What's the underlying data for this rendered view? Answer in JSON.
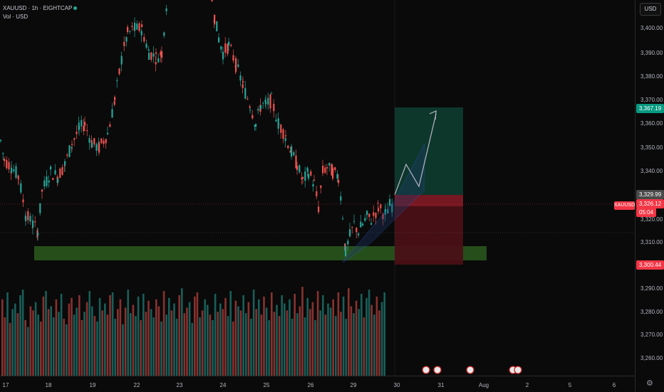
{
  "header": {
    "symbol_line": "XAUUSD · 1h · EIGHTCAP",
    "vol_line": "Vol · USD",
    "currency": "USD",
    "symbol_tag": "XAUUSD"
  },
  "price_scale": {
    "labels": [
      "3,400.00",
      "3,390.00",
      "3,380.00",
      "3,370.00",
      "3,360.00",
      "3,350.00",
      "3,340.00",
      "3,320.00",
      "3,310.00",
      "3,290.00",
      "3,280.00",
      "3,270.00",
      "3,260.00"
    ],
    "tags": {
      "target": {
        "text": "3,367.19",
        "color": "#089981"
      },
      "entry": {
        "text": "3,329.99",
        "color": "#4a4a4a"
      },
      "last_price": {
        "text": "3,326.12",
        "color": "#f23645"
      },
      "countdown": {
        "text": "05:04",
        "color": "#f23645"
      },
      "stop": {
        "text": "3,300.44",
        "color": "#f23645"
      }
    }
  },
  "time_scale": {
    "labels": [
      "17",
      "18",
      "19",
      "22",
      "23",
      "24",
      "25",
      "26",
      "29",
      "30",
      "31",
      "Aug",
      "2",
      "5",
      "6"
    ]
  },
  "colors": {
    "up": "#26a69a",
    "down": "#ef5350",
    "support_zone": "#2b5a1e",
    "reward_zone": "#0f3a2e",
    "risk_zone": "#4a1016"
  },
  "chart_data": {
    "type": "candlestick",
    "instrument": "XAUUSD",
    "timeframe": "1h",
    "ylim": [
      3255,
      3425
    ],
    "last_price": 3326.12,
    "position": {
      "target": 3367.19,
      "entry": 3329.99,
      "stop": 3300.44
    },
    "support_zone": [
      3305,
      3308
    ],
    "path": [
      [
        0,
        3353
      ],
      [
        5,
        3345
      ],
      [
        15,
        3342
      ],
      [
        25,
        3338
      ],
      [
        35,
        3322
      ],
      [
        45,
        3318
      ],
      [
        52,
        3315
      ],
      [
        58,
        3332
      ],
      [
        70,
        3340
      ],
      [
        80,
        3338
      ],
      [
        90,
        3343
      ],
      [
        100,
        3352
      ],
      [
        110,
        3358
      ],
      [
        118,
        3360
      ],
      [
        128,
        3352
      ],
      [
        138,
        3350
      ],
      [
        150,
        3356
      ],
      [
        160,
        3370
      ],
      [
        170,
        3388
      ],
      [
        178,
        3398
      ],
      [
        188,
        3400
      ],
      [
        198,
        3400
      ],
      [
        208,
        3390
      ],
      [
        218,
        3388
      ],
      [
        226,
        3390
      ],
      [
        234,
        3415
      ],
      [
        240,
        3425
      ],
      [
        250,
        3425
      ],
      [
        260,
        3425
      ],
      [
        290,
        3425
      ],
      [
        300,
        3405
      ],
      [
        306,
        3396
      ],
      [
        312,
        3390
      ],
      [
        320,
        3393
      ],
      [
        330,
        3385
      ],
      [
        340,
        3376
      ],
      [
        350,
        3368
      ],
      [
        358,
        3360
      ],
      [
        365,
        3368
      ],
      [
        372,
        3368
      ],
      [
        380,
        3370
      ],
      [
        390,
        3360
      ],
      [
        400,
        3355
      ],
      [
        408,
        3348
      ],
      [
        416,
        3343
      ],
      [
        424,
        3336
      ],
      [
        432,
        3340
      ],
      [
        440,
        3335
      ],
      [
        446,
        3325
      ],
      [
        452,
        3340
      ],
      [
        458,
        3342
      ],
      [
        466,
        3340
      ],
      [
        474,
        3338
      ],
      [
        480,
        3322
      ],
      [
        484,
        3306
      ],
      [
        490,
        3313
      ],
      [
        496,
        3318
      ],
      [
        502,
        3315
      ],
      [
        508,
        3318
      ],
      [
        514,
        3321
      ],
      [
        520,
        3320
      ],
      [
        530,
        3325
      ],
      [
        540,
        3322
      ],
      [
        546,
        3326
      ],
      [
        552,
        3326
      ]
    ],
    "volume": [
      55,
      42,
      60,
      38,
      48,
      52,
      45,
      58,
      62,
      40,
      35,
      50,
      47,
      53,
      44,
      39,
      57,
      61,
      48,
      50,
      42,
      55,
      46,
      59,
      41,
      37,
      52,
      56,
      44,
      49,
      58,
      40,
      46,
      53,
      61,
      50,
      43,
      39,
      56,
      47,
      52,
      44,
      58,
      60,
      41,
      48,
      55,
      37,
      49,
      62,
      45,
      51,
      43,
      57,
      40,
      59,
      46,
      54,
      48,
      42,
      55,
      50,
      39,
      61,
      44,
      56,
      47,
      52,
      41,
      58,
      63,
      45,
      49,
      53,
      38,
      57,
      60,
      42,
      47,
      55,
      51,
      44,
      40,
      59,
      46,
      52,
      48,
      56,
      43,
      61,
      39,
      54,
      50,
      47,
      58,
      45,
      53,
      41,
      62,
      48,
      55,
      44,
      57,
      49,
      40,
      60,
      46,
      51,
      43,
      58,
      52,
      47,
      55,
      41,
      59,
      45,
      50,
      64,
      42,
      56,
      48,
      53,
      40,
      61,
      47,
      58,
      44,
      52,
      49,
      55,
      43,
      60,
      46,
      57,
      41,
      63,
      50,
      45,
      54,
      48,
      59,
      42,
      56,
      62,
      51,
      44,
      57,
      47,
      53,
      60
    ]
  }
}
